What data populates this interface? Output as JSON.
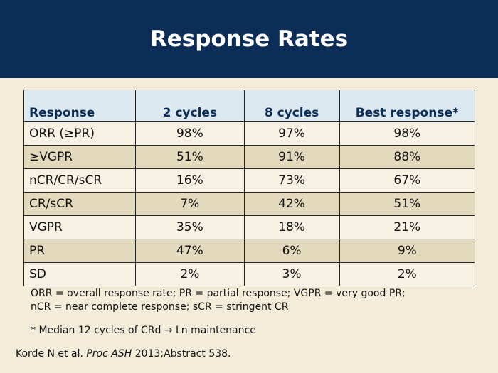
{
  "title": "Response Rates",
  "table": {
    "headers": [
      "Response",
      "2 cycles",
      "8 cycles",
      "Best response*"
    ],
    "rows": [
      [
        "ORR (≥PR)",
        "98%",
        "97%",
        "98%"
      ],
      [
        "≥VGPR",
        "51%",
        "91%",
        "88%"
      ],
      [
        "nCR/CR/sCR",
        "16%",
        "73%",
        "67%"
      ],
      [
        "CR/sCR",
        "7%",
        "42%",
        "51%"
      ],
      [
        "VGPR",
        "35%",
        "18%",
        "21%"
      ],
      [
        "PR",
        "47%",
        "6%",
        "9%"
      ],
      [
        "SD",
        "2%",
        "3%",
        "2%"
      ]
    ]
  },
  "notes": {
    "line1": "ORR = overall response rate; PR = partial response; VGPR = very good PR;",
    "line2": "nCR = near complete response; sCR = stringent CR"
  },
  "footnote": "* Median 12 cycles of CRd → Ln maintenance",
  "citation": {
    "authors": "Korde N et al.",
    "journal": "Proc ASH",
    "rest": "2013;Abstract 538."
  },
  "colors": {
    "header_bg": "#0b2d58",
    "slide_bg": "#f2ecd9",
    "table_header_bg": "#dde9f1",
    "row_alt_bg": "#e3d9bd"
  }
}
